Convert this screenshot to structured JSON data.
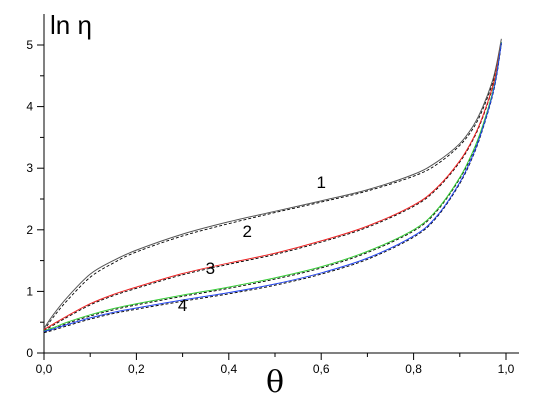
{
  "chart_data": {
    "type": "line",
    "xlabel": "θ",
    "ylabel": "ln η",
    "xlim": [
      0,
      1
    ],
    "ylim": [
      0,
      5.5
    ],
    "x_ticks": [
      {
        "value": 0,
        "label": "0,0"
      },
      {
        "value": 0.2,
        "label": "0,2"
      },
      {
        "value": 0.4,
        "label": "0,4"
      },
      {
        "value": 0.6,
        "label": "0,6"
      },
      {
        "value": 0.8,
        "label": "0,8"
      },
      {
        "value": 1.0,
        "label": "1,0"
      }
    ],
    "y_ticks": [
      {
        "value": 0,
        "label": "0"
      },
      {
        "value": 1,
        "label": "1"
      },
      {
        "value": 2,
        "label": "2"
      },
      {
        "value": 3,
        "label": "3"
      },
      {
        "value": 4,
        "label": "4"
      },
      {
        "value": 5,
        "label": "5"
      }
    ],
    "x": [
      0.0,
      0.02,
      0.05,
      0.1,
      0.15,
      0.2,
      0.3,
      0.4,
      0.5,
      0.6,
      0.7,
      0.8,
      0.85,
      0.9,
      0.93,
      0.95,
      0.97,
      0.98,
      0.99
    ],
    "series": [
      {
        "name": "1",
        "color": "#555555",
        "label_at": [
          0.6,
          2.68
        ],
        "solid": [
          0.4,
          0.62,
          0.9,
          1.28,
          1.5,
          1.67,
          1.93,
          2.13,
          2.3,
          2.47,
          2.65,
          2.9,
          3.1,
          3.4,
          3.7,
          4.0,
          4.4,
          4.7,
          5.1
        ],
        "dashed": [
          0.37,
          0.58,
          0.85,
          1.23,
          1.46,
          1.64,
          1.9,
          2.1,
          2.28,
          2.45,
          2.63,
          2.87,
          3.06,
          3.37,
          3.66,
          3.96,
          4.36,
          4.66,
          5.05
        ]
      },
      {
        "name": "2",
        "color": "#ee2222",
        "label_at": [
          0.44,
          1.88
        ],
        "solid": [
          0.38,
          0.47,
          0.6,
          0.8,
          0.95,
          1.07,
          1.29,
          1.46,
          1.62,
          1.82,
          2.06,
          2.4,
          2.68,
          3.12,
          3.5,
          3.85,
          4.3,
          4.62,
          5.05
        ],
        "dashed": [
          0.36,
          0.45,
          0.58,
          0.78,
          0.93,
          1.05,
          1.27,
          1.44,
          1.6,
          1.8,
          2.04,
          2.38,
          2.66,
          3.1,
          3.48,
          3.83,
          4.28,
          4.6,
          5.03
        ]
      },
      {
        "name": "3",
        "color": "#33cc33",
        "label_at": [
          0.36,
          1.28
        ],
        "solid": [
          0.36,
          0.41,
          0.5,
          0.62,
          0.72,
          0.8,
          0.94,
          1.07,
          1.22,
          1.4,
          1.65,
          2.0,
          2.32,
          2.85,
          3.3,
          3.7,
          4.2,
          4.55,
          5.05
        ],
        "dashed": [
          0.34,
          0.39,
          0.48,
          0.6,
          0.7,
          0.78,
          0.92,
          1.05,
          1.2,
          1.38,
          1.63,
          1.98,
          2.3,
          2.83,
          3.28,
          3.68,
          4.18,
          4.53,
          5.03
        ]
      },
      {
        "name": "4",
        "color": "#2244ee",
        "label_at": [
          0.3,
          0.68
        ],
        "solid": [
          0.35,
          0.39,
          0.46,
          0.57,
          0.66,
          0.73,
          0.86,
          0.98,
          1.12,
          1.3,
          1.54,
          1.9,
          2.22,
          2.77,
          3.24,
          3.66,
          4.17,
          4.53,
          5.04
        ],
        "dashed": [
          0.33,
          0.37,
          0.44,
          0.55,
          0.64,
          0.71,
          0.84,
          0.96,
          1.1,
          1.28,
          1.52,
          1.88,
          2.2,
          2.75,
          3.22,
          3.64,
          4.15,
          4.51,
          5.02
        ]
      }
    ]
  }
}
